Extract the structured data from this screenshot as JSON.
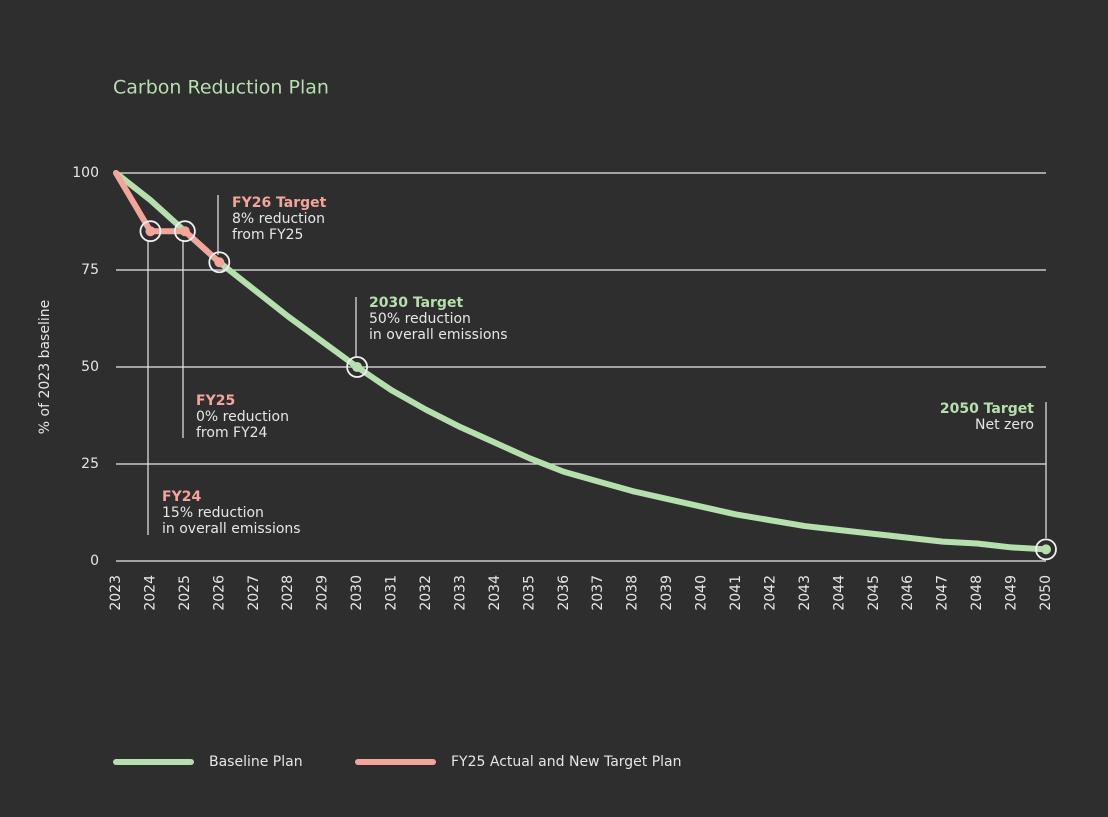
{
  "chart_data": {
    "type": "line",
    "title": "Carbon Reduction Plan",
    "y_label": "% of 2023 baseline",
    "x": [
      2023,
      2024,
      2025,
      2026,
      2027,
      2028,
      2029,
      2030,
      2031,
      2032,
      2033,
      2034,
      2035,
      2036,
      2037,
      2038,
      2039,
      2040,
      2041,
      2042,
      2043,
      2044,
      2045,
      2046,
      2047,
      2048,
      2049,
      2050
    ],
    "xlim": [
      2023,
      2050
    ],
    "xticks": [
      2023,
      2024,
      2025,
      2026,
      2027,
      2028,
      2029,
      2030,
      2031,
      2032,
      2033,
      2034,
      2035,
      2036,
      2037,
      2038,
      2039,
      2040,
      2041,
      2042,
      2043,
      2044,
      2045,
      2046,
      2047,
      2048,
      2049,
      2050
    ],
    "ylim": [
      0,
      100
    ],
    "yticks": [
      0,
      25,
      50,
      75,
      100
    ],
    "grid": true,
    "series": [
      {
        "name": "Baseline Plan",
        "color": "#b5e0ad",
        "values": [
          100,
          93,
          85,
          77,
          70,
          63,
          56.5,
          50,
          44,
          39,
          34.5,
          30.5,
          26.5,
          23,
          20.5,
          18,
          16,
          14,
          12,
          10.5,
          9,
          8,
          7,
          6,
          5,
          4.5,
          3.5,
          3
        ]
      },
      {
        "name": "FY25 Actual and New Target Plan",
        "color": "#f4a59a",
        "values": [
          100,
          85,
          85,
          77,
          null,
          null,
          null,
          null,
          null,
          null,
          null,
          null,
          null,
          null,
          null,
          null,
          null,
          null,
          null,
          null,
          null,
          null,
          null,
          null,
          null,
          null,
          null,
          null
        ]
      }
    ],
    "annotations": [
      {
        "title": "FY26 Target",
        "color": "#f4a59a",
        "text": [
          "8% reduction",
          "from FY25"
        ]
      },
      {
        "title": "2030 Target",
        "color": "#b5e0ad",
        "text": [
          "50% reduction",
          "in overall emissions"
        ]
      },
      {
        "title": "FY25",
        "color": "#f4a59a",
        "text": [
          "0% reduction",
          "from FY24"
        ]
      },
      {
        "title": "FY24",
        "color": "#f4a59a",
        "text": [
          "15% reduction",
          "in overall emissions"
        ]
      },
      {
        "title": "2050 Target",
        "color": "#b5e0ad",
        "text": [
          "Net zero"
        ]
      }
    ]
  }
}
